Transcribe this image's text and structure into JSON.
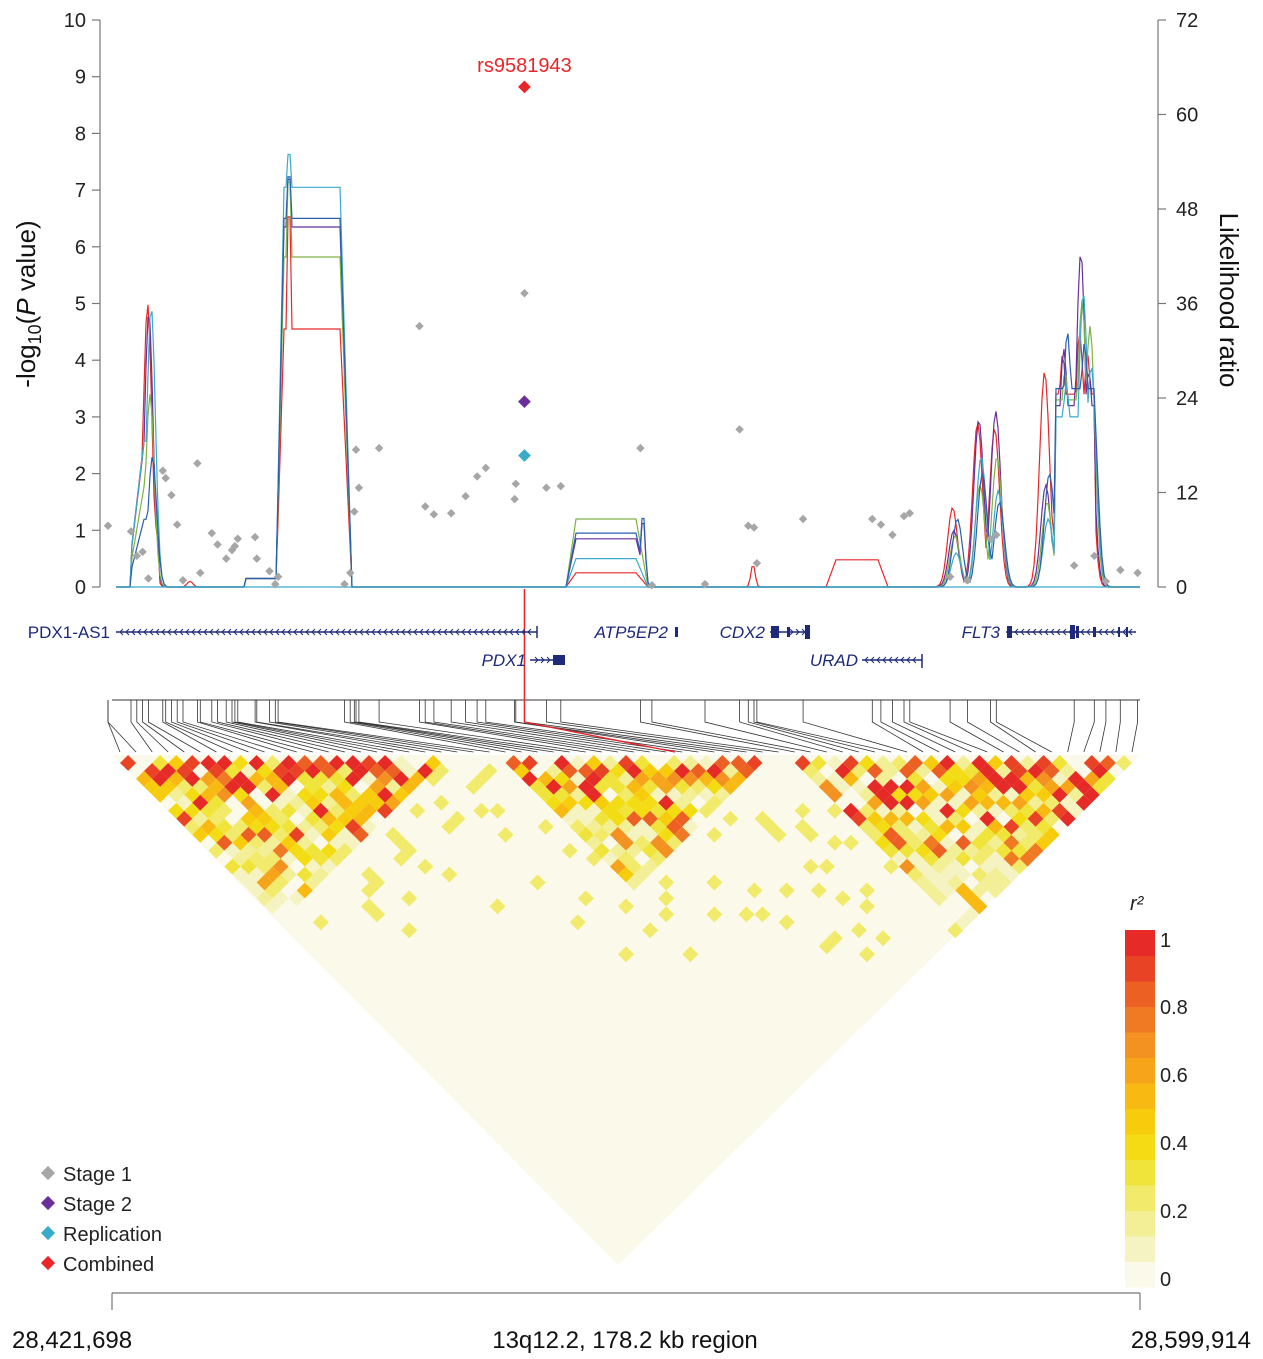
{
  "chart_data": {
    "type": "scatter",
    "ylabel_left": "-log10(P value)",
    "ylabel_right": "Likelihood ratio",
    "ylim_left": [
      0,
      10
    ],
    "ylim_right": [
      0,
      72
    ],
    "yticks_left": [
      "0",
      "1",
      "2",
      "3",
      "4",
      "5",
      "6",
      "7",
      "8",
      "9",
      "10"
    ],
    "yticks_right": [
      "0",
      "12",
      "24",
      "36",
      "48",
      "60",
      "72"
    ],
    "xlim": [
      28421698,
      28599914
    ],
    "top_snp": {
      "label": "rs9581943",
      "x": 28493200
    },
    "series": [
      {
        "name": "Stage 1",
        "color": "#a6a6a6",
        "points": [
          [
            28421000,
            1.08
          ],
          [
            28425000,
            0.98
          ],
          [
            28426000,
            0.55
          ],
          [
            28427000,
            0.62
          ],
          [
            28428000,
            0.15
          ],
          [
            28430500,
            2.05
          ],
          [
            28431000,
            1.92
          ],
          [
            28432000,
            1.62
          ],
          [
            28433000,
            1.1
          ],
          [
            28434000,
            0.12
          ],
          [
            28436500,
            2.18
          ],
          [
            28437000,
            0.25
          ],
          [
            28439000,
            0.95
          ],
          [
            28440000,
            0.75
          ],
          [
            28441500,
            0.5
          ],
          [
            28442500,
            0.65
          ],
          [
            28443000,
            0.72
          ],
          [
            28443500,
            0.85
          ],
          [
            28446500,
            0.88
          ],
          [
            28446800,
            0.5
          ],
          [
            28449000,
            0.28
          ],
          [
            28450000,
            0.05
          ],
          [
            28450500,
            0.18
          ],
          [
            28462000,
            0.05
          ],
          [
            28463000,
            0.25
          ],
          [
            28463700,
            1.33
          ],
          [
            28464000,
            2.42
          ],
          [
            28464500,
            1.75
          ],
          [
            28468000,
            2.45
          ],
          [
            28475000,
            4.6
          ],
          [
            28476000,
            1.42
          ],
          [
            28477500,
            1.28
          ],
          [
            28480500,
            1.3
          ],
          [
            28483000,
            1.6
          ],
          [
            28485000,
            1.95
          ],
          [
            28486500,
            2.1
          ],
          [
            28491500,
            1.55
          ],
          [
            28491700,
            1.82
          ],
          [
            28493200,
            5.18
          ],
          [
            28497000,
            1.75
          ],
          [
            28499500,
            1.78
          ],
          [
            28513300,
            2.45
          ],
          [
            28515300,
            0.03
          ],
          [
            28524500,
            0.05
          ],
          [
            28530500,
            2.78
          ],
          [
            28532000,
            1.08
          ],
          [
            28533000,
            1.05
          ],
          [
            28533500,
            0.42
          ],
          [
            28541500,
            1.2
          ],
          [
            28553500,
            1.2
          ],
          [
            28555000,
            1.1
          ],
          [
            28557000,
            0.92
          ],
          [
            28559000,
            1.25
          ],
          [
            28560000,
            1.3
          ],
          [
            28567000,
            0.18
          ],
          [
            28570000,
            0.12
          ],
          [
            28574000,
            0.85
          ],
          [
            28575000,
            0.92
          ],
          [
            28588500,
            0.38
          ],
          [
            28592000,
            0.55
          ],
          [
            28594000,
            0.1
          ],
          [
            28596500,
            0.3
          ],
          [
            28599500,
            0.25
          ]
        ]
      },
      {
        "name": "Stage 2",
        "color": "#6a2f9a",
        "points": [
          [
            28493200,
            3.27
          ]
        ]
      },
      {
        "name": "Replication",
        "color": "#3aabc9",
        "points": [
          [
            28493200,
            2.32
          ]
        ]
      },
      {
        "name": "Combined",
        "color": "#e8262a",
        "points": [
          [
            28493200,
            8.82
          ]
        ]
      }
    ],
    "lr_lines": {
      "colors": [
        "#e8262a",
        "#6a2f9a",
        "#7fb243",
        "#3aabc9",
        "#2a5fb0"
      ],
      "plateau_1_levels": [
        4.55,
        6.35,
        5.82,
        7.05,
        6.5
      ],
      "plateau_1_peaks": [
        6.95,
        7.65,
        7.6,
        8.12,
        7.7
      ],
      "plateau_2_levels": [
        0.25,
        0.85,
        1.2,
        0.5,
        0.95
      ],
      "spike_1_levels": [
        5.0,
        4.85,
        3.4,
        4.95,
        2.3
      ]
    },
    "genes": [
      {
        "name": "PDX1-AS1",
        "italic": false
      },
      {
        "name": "PDX1",
        "italic": true
      },
      {
        "name": "ATP5EP2",
        "italic": true
      },
      {
        "name": "CDX2",
        "italic": true
      },
      {
        "name": "URAD",
        "italic": true
      },
      {
        "name": "FLT3",
        "italic": true
      }
    ],
    "ld_legend": {
      "title": "r²",
      "ticks": [
        "1",
        "0.8",
        "0.6",
        "0.4",
        "0.2",
        "0"
      ],
      "colors": [
        "#fbfaea",
        "#f6f3c2",
        "#f3ef97",
        "#f1ea6b",
        "#f0e43a",
        "#f3dc13",
        "#f7cc0c",
        "#f7b912",
        "#f6a51b",
        "#f39121",
        "#f07a23",
        "#ec6024",
        "#e94326",
        "#e52a27"
      ]
    },
    "legend": [
      {
        "label": "Stage 1",
        "color": "#a6a6a6"
      },
      {
        "label": "Stage 2",
        "color": "#6a2f9a"
      },
      {
        "label": "Replication",
        "color": "#3aabc9"
      },
      {
        "label": "Combined",
        "color": "#e8262a"
      }
    ],
    "x_axis": {
      "start_label": "28,421,698",
      "end_label": "28,599,914",
      "region_label": "13q12.2, 178.2 kb region"
    }
  }
}
